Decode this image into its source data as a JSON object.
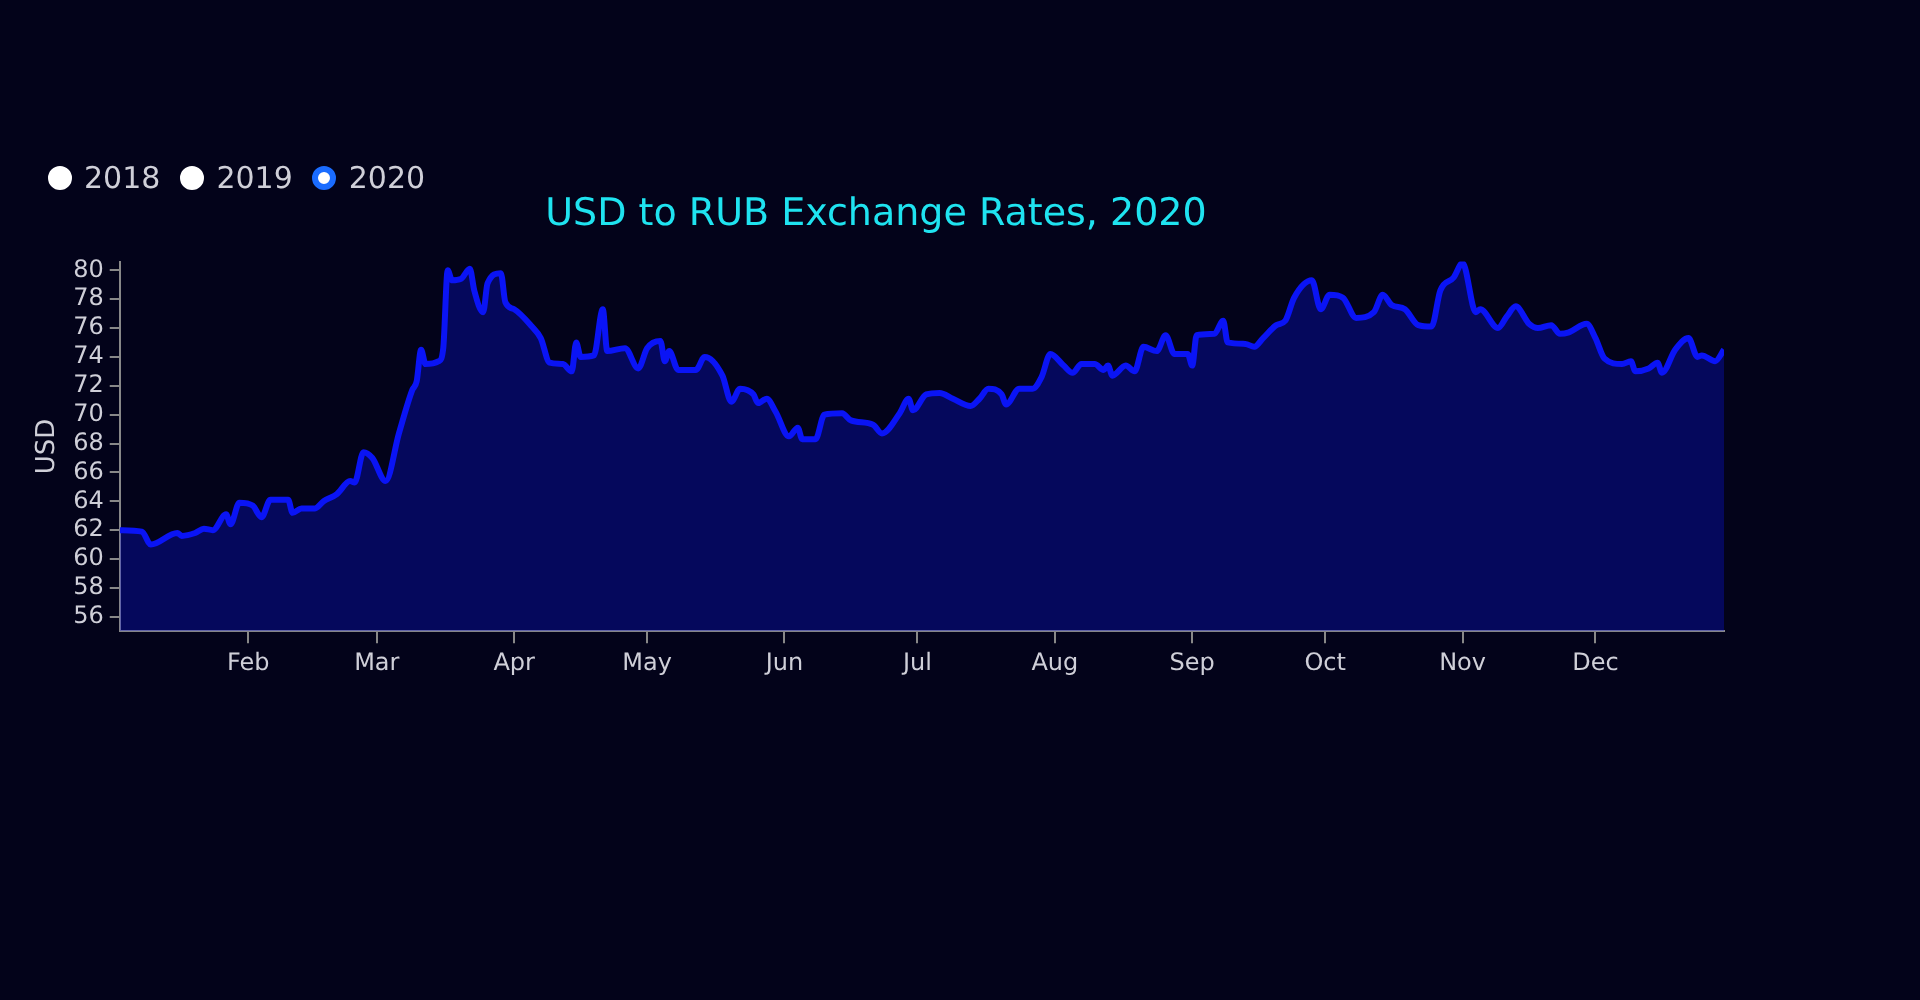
{
  "chart_data": {
    "type": "area",
    "title": "USD to RUB Exchange Rates, 2020",
    "ylabel": "USD",
    "annotations": [
      "2018",
      "2019",
      "2020"
    ],
    "x": [
      "2020-01-03",
      "2020-01-08",
      "2020-01-10",
      "2020-01-16",
      "2020-01-17",
      "2020-01-20",
      "2020-01-22",
      "2020-01-24",
      "2020-01-27",
      "2020-01-28",
      "2020-01-30",
      "2020-02-02",
      "2020-02-04",
      "2020-02-06",
      "2020-02-10",
      "2020-02-11",
      "2020-02-13",
      "2020-02-16",
      "2020-02-18",
      "2020-02-21",
      "2020-02-24",
      "2020-02-25",
      "2020-02-27",
      "2020-02-29",
      "2020-03-03",
      "2020-03-06",
      "2020-03-09",
      "2020-03-10",
      "2020-03-11",
      "2020-03-12",
      "2020-03-15",
      "2020-03-16",
      "2020-03-17",
      "2020-03-18",
      "2020-03-20",
      "2020-03-22",
      "2020-03-23",
      "2020-03-25",
      "2020-03-26",
      "2020-03-29",
      "2020-03-30",
      "2020-04-01",
      "2020-04-05",
      "2020-04-07",
      "2020-04-09",
      "2020-04-12",
      "2020-04-14",
      "2020-04-15",
      "2020-04-16",
      "2020-04-19",
      "2020-04-21",
      "2020-04-22",
      "2020-04-26",
      "2020-04-29",
      "2020-05-01",
      "2020-05-04",
      "2020-05-05",
      "2020-05-06",
      "2020-05-08",
      "2020-05-12",
      "2020-05-14",
      "2020-05-18",
      "2020-05-20",
      "2020-05-22",
      "2020-05-25",
      "2020-05-26",
      "2020-05-28",
      "2020-05-30",
      "2020-06-02",
      "2020-06-04",
      "2020-06-05",
      "2020-06-08",
      "2020-06-10",
      "2020-06-14",
      "2020-06-16",
      "2020-06-21",
      "2020-06-23",
      "2020-06-27",
      "2020-06-29",
      "2020-06-30",
      "2020-07-03",
      "2020-07-06",
      "2020-07-09",
      "2020-07-13",
      "2020-07-15",
      "2020-07-17",
      "2020-07-20",
      "2020-07-21",
      "2020-07-24",
      "2020-07-27",
      "2020-07-29",
      "2020-07-31",
      "2020-08-03",
      "2020-08-05",
      "2020-08-07",
      "2020-08-10",
      "2020-08-12",
      "2020-08-13",
      "2020-08-14",
      "2020-08-17",
      "2020-08-19",
      "2020-08-21",
      "2020-08-24",
      "2020-08-26",
      "2020-08-28",
      "2020-08-31",
      "2020-09-01",
      "2020-09-02",
      "2020-09-06",
      "2020-09-08",
      "2020-09-09",
      "2020-09-13",
      "2020-09-15",
      "2020-09-17",
      "2020-09-20",
      "2020-09-22",
      "2020-09-24",
      "2020-09-28",
      "2020-09-30",
      "2020-10-02",
      "2020-10-05",
      "2020-10-08",
      "2020-10-12",
      "2020-10-14",
      "2020-10-16",
      "2020-10-19",
      "2020-10-22",
      "2020-10-25",
      "2020-10-27",
      "2020-10-30",
      "2020-11-01",
      "2020-11-04",
      "2020-11-05",
      "2020-11-09",
      "2020-11-11",
      "2020-11-13",
      "2020-11-16",
      "2020-11-18",
      "2020-11-21",
      "2020-11-23",
      "2020-11-25",
      "2020-11-29",
      "2020-12-01",
      "2020-12-03",
      "2020-12-07",
      "2020-12-09",
      "2020-12-10",
      "2020-12-13",
      "2020-12-15",
      "2020-12-16",
      "2020-12-19",
      "2020-12-22",
      "2020-12-24",
      "2020-12-25",
      "2020-12-28",
      "2020-12-30"
    ],
    "series": [
      {
        "color": "#0a14f5",
        "values": [
          62.0,
          61.9,
          61.0,
          61.8,
          61.6,
          61.8,
          62.1,
          62.0,
          63.1,
          62.4,
          63.9,
          63.7,
          62.9,
          64.1,
          64.1,
          63.2,
          63.5,
          63.5,
          64.0,
          64.5,
          65.4,
          65.3,
          67.4,
          67.0,
          65.4,
          68.7,
          71.7,
          72.3,
          74.5,
          73.5,
          73.7,
          74.6,
          80.0,
          79.3,
          79.4,
          80.1,
          78.6,
          77.1,
          79.1,
          79.8,
          77.8,
          77.3,
          76.1,
          75.3,
          73.6,
          73.5,
          73.0,
          75.0,
          74.0,
          74.1,
          77.3,
          74.4,
          74.6,
          73.2,
          74.6,
          75.1,
          73.7,
          74.4,
          73.1,
          73.1,
          74.0,
          72.7,
          70.9,
          71.8,
          71.4,
          70.8,
          71.1,
          70.2,
          68.5,
          69.1,
          68.3,
          68.3,
          70.0,
          70.1,
          69.6,
          69.3,
          68.7,
          70.1,
          71.1,
          70.3,
          71.4,
          71.5,
          71.1,
          70.6,
          71.1,
          71.8,
          71.4,
          70.7,
          71.8,
          71.8,
          72.6,
          74.2,
          73.4,
          72.9,
          73.5,
          73.5,
          73.1,
          73.4,
          72.7,
          73.4,
          73.0,
          74.7,
          74.4,
          75.5,
          74.2,
          74.2,
          73.4,
          75.5,
          75.6,
          76.5,
          75.0,
          74.9,
          74.7,
          75.3,
          76.2,
          76.5,
          78.1,
          79.3,
          77.3,
          78.3,
          78.1,
          76.7,
          77.1,
          78.3,
          77.6,
          77.3,
          76.2,
          76.1,
          78.6,
          79.5,
          80.5,
          77.1,
          77.3,
          76.0,
          76.8,
          77.5,
          76.3,
          76.0,
          76.2,
          75.6,
          75.7,
          76.3,
          75.3,
          73.9,
          73.5,
          73.7,
          73.0,
          73.2,
          73.6,
          72.9,
          74.5,
          75.3,
          74.0,
          74.1,
          73.7,
          74.5
        ]
      }
    ],
    "xlim": [
      "2020-01-03",
      "2020-12-30"
    ],
    "xticks": [
      {
        "value": "2020-02-01",
        "label": "Feb"
      },
      {
        "value": "2020-03-01",
        "label": "Mar"
      },
      {
        "value": "2020-04-01",
        "label": "Apr"
      },
      {
        "value": "2020-05-01",
        "label": "May"
      },
      {
        "value": "2020-06-01",
        "label": "Jun"
      },
      {
        "value": "2020-07-01",
        "label": "Jul"
      },
      {
        "value": "2020-08-01",
        "label": "Aug"
      },
      {
        "value": "2020-09-01",
        "label": "Sep"
      },
      {
        "value": "2020-10-01",
        "label": "Oct"
      },
      {
        "value": "2020-11-01",
        "label": "Nov"
      },
      {
        "value": "2020-12-01",
        "label": "Dec"
      }
    ],
    "ylim": [
      55,
      80.6
    ],
    "yticks": [
      56,
      58,
      60,
      62,
      64,
      66,
      68,
      70,
      72,
      74,
      76,
      78,
      80
    ],
    "grid": false,
    "legend": false
  }
}
